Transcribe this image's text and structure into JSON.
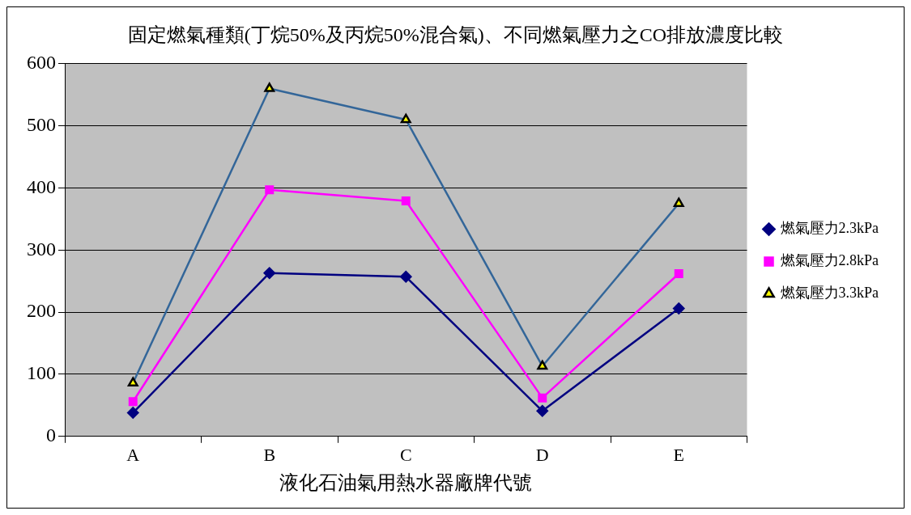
{
  "chart_data": {
    "type": "line",
    "title": "固定燃氣種類(丁烷50%及丙烷50%混合氣)、不同燃氣壓力之CO排放濃度比較",
    "xlabel": "液化石油氣用熱水器廠牌代號",
    "categories": [
      "A",
      "B",
      "C",
      "D",
      "E"
    ],
    "series": [
      {
        "name": "燃氣壓力2.3kPa",
        "color": "#000080",
        "marker": "diamond",
        "values": [
          38,
          263,
          257,
          41,
          206
        ]
      },
      {
        "name": "燃氣壓力2.8kPa",
        "color": "#ff00ff",
        "marker": "square",
        "values": [
          56,
          397,
          379,
          62,
          262
        ]
      },
      {
        "name": "燃氣壓力3.3kPa",
        "color": "#336699",
        "marker": "triangle",
        "values": [
          86,
          560,
          510,
          113,
          375
        ]
      }
    ],
    "ylim": [
      0,
      600
    ],
    "yticks": [
      0,
      100,
      200,
      300,
      400,
      500,
      600
    ],
    "grid": "y",
    "legend": "right",
    "line_style": "solid"
  }
}
